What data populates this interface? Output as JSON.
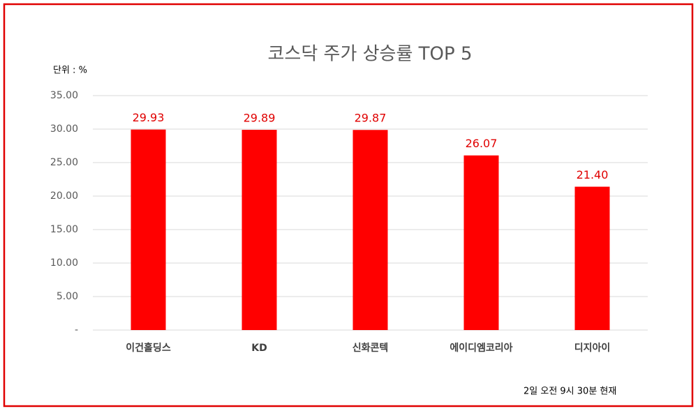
{
  "chart_data": {
    "type": "bar",
    "title": "코스닥 주가 상승률 TOP 5",
    "unit_label": "단위 : %",
    "note": "2일  오전 9시 30분 현재",
    "categories": [
      "이건홀딩스",
      "KD",
      "신화콘텍",
      "에이디엠코리아",
      "디지아이"
    ],
    "values": [
      29.93,
      29.89,
      29.87,
      26.07,
      21.4
    ],
    "value_labels": [
      "29.93",
      "29.89",
      "29.87",
      "26.07",
      "21.40"
    ],
    "color": "#ff0000",
    "ylim": [
      0,
      35
    ],
    "yticks": [
      {
        "value": 0,
        "label": "-"
      },
      {
        "value": 5,
        "label": "5.00"
      },
      {
        "value": 10,
        "label": "10.00"
      },
      {
        "value": 15,
        "label": "15.00"
      },
      {
        "value": 20,
        "label": "20.00"
      },
      {
        "value": 25,
        "label": "25.00"
      },
      {
        "value": 30,
        "label": "30.00"
      },
      {
        "value": 35,
        "label": "35.00"
      }
    ],
    "grid": true
  }
}
